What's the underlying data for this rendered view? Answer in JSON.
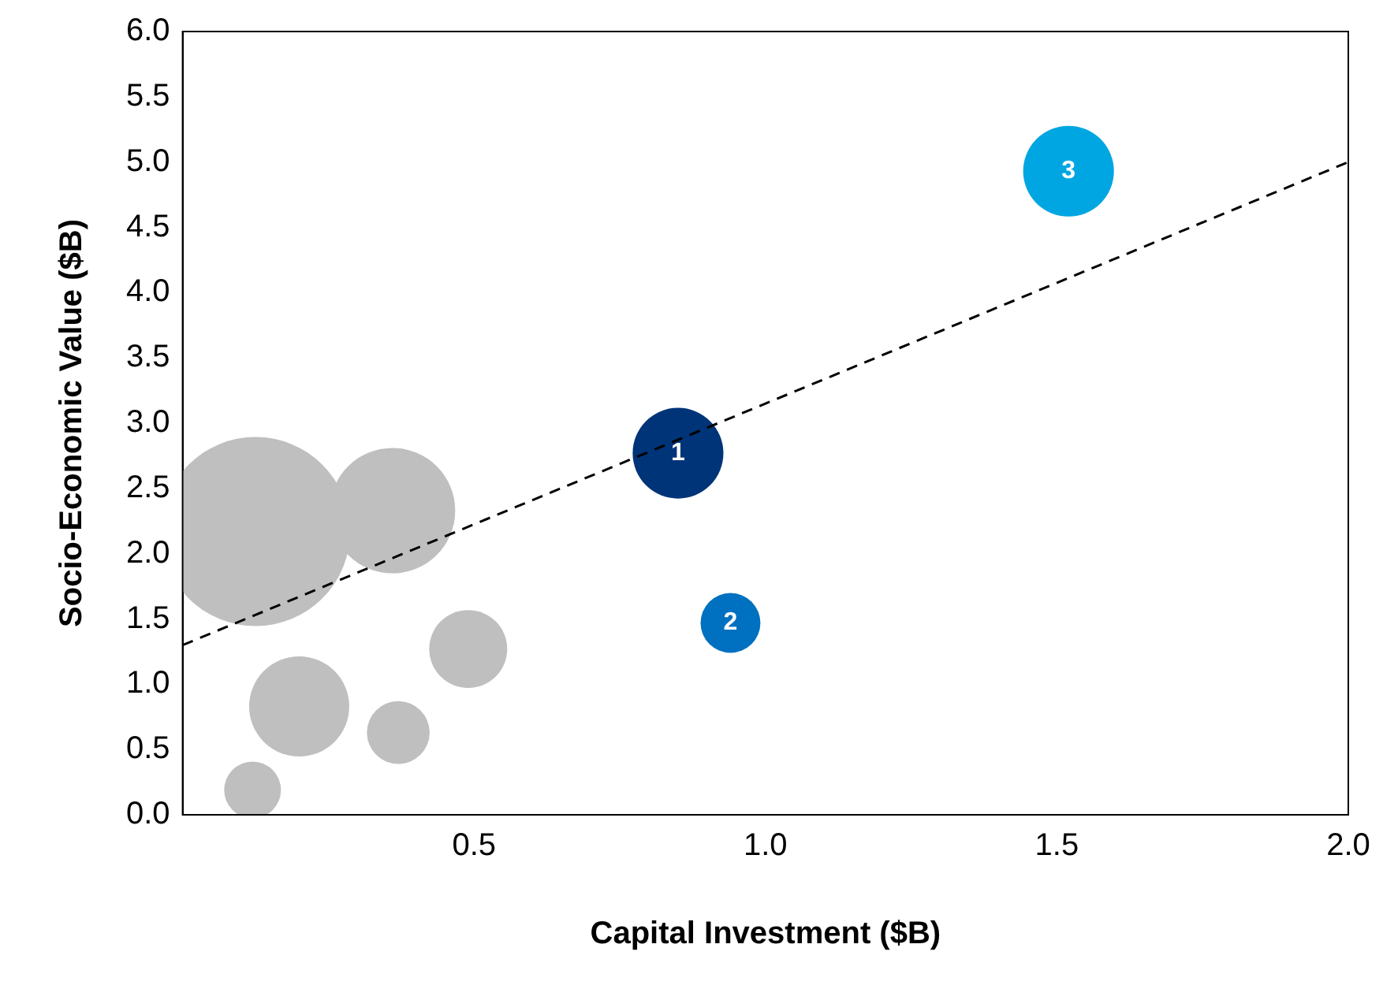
{
  "chart_data": {
    "type": "bubble",
    "xlabel": "Capital Investment ($B)",
    "ylabel": "Socio-Economic Value ($B)",
    "xlim": [
      0,
      2
    ],
    "xticks": [
      0.5,
      {
        "value": 1,
        "label": "1.0"
      },
      1.5,
      {
        "value": 2,
        "label": "2.0"
      }
    ],
    "ylim": [
      0,
      6
    ],
    "yticks": [
      {
        "value": 0,
        "label": "0.0"
      },
      0.5,
      {
        "value": 1,
        "label": "1.0"
      },
      1.5,
      {
        "value": 2,
        "label": "2.0"
      },
      2.5,
      {
        "value": 3,
        "label": "3.0"
      },
      3.5,
      {
        "value": 4,
        "label": "4.0"
      },
      4.5,
      {
        "value": 5,
        "label": "5.0"
      },
      5.5,
      {
        "value": 6,
        "label": "6.0"
      }
    ],
    "grid": false,
    "legend": false,
    "series": [
      {
        "type": "bubble",
        "x": [
          0.125,
          0.36,
          0.2,
          0.49,
          0.37,
          0.12,
          0.85,
          0.94,
          1.52
        ],
        "values": [
          2.17,
          2.33,
          0.83,
          1.27,
          0.63,
          0.19,
          2.77,
          1.47,
          4.93
        ],
        "sizes": [
          1,
          0.44,
          0.28,
          0.17,
          0.11,
          0.09,
          0.23,
          0.1,
          0.23
        ],
        "colors": [
          "#bfbfbf",
          "#bfbfbf",
          "#bfbfbf",
          "#bfbfbf",
          "#bfbfbf",
          "#bfbfbf",
          "#003478",
          "#0070c0",
          "#00a6e2"
        ]
      },
      {
        "type": "line",
        "x": [
          0,
          2
        ],
        "values": [
          1.3,
          5.0
        ],
        "color": "#000000",
        "line_style": "dashed",
        "marker": "none"
      }
    ],
    "annotations": [
      {
        "text": "1",
        "x": 0.85,
        "y": 2.77
      },
      {
        "text": "2",
        "x": 0.94,
        "y": 1.47
      },
      {
        "text": "3",
        "x": 1.52,
        "y": 4.93
      }
    ]
  }
}
